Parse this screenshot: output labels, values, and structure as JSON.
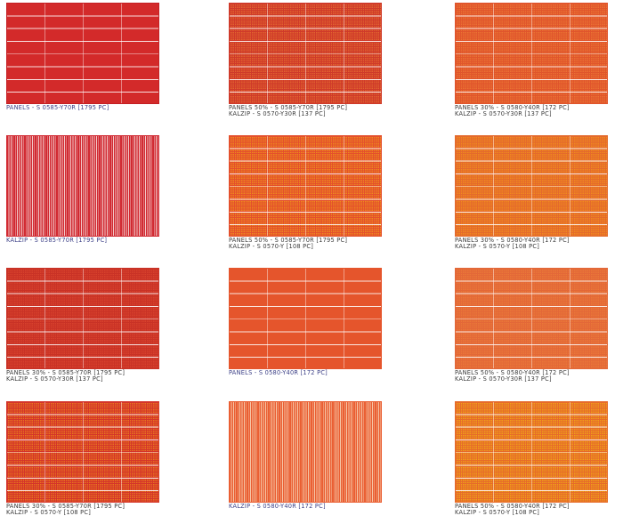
{
  "swatches": [
    {
      "lines": [
        "PANELS - S 0585-Y70R [1795 PC]"
      ],
      "caption_color": "#3b3f86",
      "colors": [
        "#d32a2a",
        "#c41f24"
      ],
      "pattern": "panels"
    },
    {
      "lines": [
        "PANELS 50% - S 0585-Y70R [1795 PC]",
        "KALZIP - S 0570-Y30R [137 PC]"
      ],
      "caption_color": "#3a3a3a",
      "colors": [
        "#e1642e",
        "#cf3a2a"
      ],
      "pattern": "panels-dot"
    },
    {
      "lines": [
        "PANELS 30% - S 0580-Y40R [172 PC]",
        "KALZIP - S 0570-Y30R [137 PC]"
      ],
      "caption_color": "#3a3a3a",
      "colors": [
        "#ea7232",
        "#e0552c"
      ],
      "pattern": "panels-dot"
    },
    {
      "lines": [
        "KALZIP - S 0585-Y70R [1795 PC]"
      ],
      "caption_color": "#3b3f86",
      "colors": [
        "#d12a32",
        "#f2c8c8"
      ],
      "pattern": "vstripes"
    },
    {
      "lines": [
        "PANELS 50% - S 0585-Y70R [1795 PC]",
        "KALZIP - S 0570-Y [108 PC]"
      ],
      "caption_color": "#3a3a3a",
      "colors": [
        "#ee8a1e",
        "#e4502c"
      ],
      "pattern": "panels-dot"
    },
    {
      "lines": [
        "PANELS 30% - S 0580-Y40R [172 PC]",
        "KALZIP - S 0570-Y [108 PC]"
      ],
      "caption_color": "#3a3a3a",
      "colors": [
        "#f08a1e",
        "#e46a2c"
      ],
      "pattern": "panels-dot"
    },
    {
      "lines": [
        "PANELS 30% - S 0585-Y70R [1795 PC]",
        "KALZIP - S 0570-Y30R [137 PC]"
      ],
      "caption_color": "#3a3a3a",
      "colors": [
        "#d8422c",
        "#c93226"
      ],
      "pattern": "panels-dot"
    },
    {
      "lines": [
        "PANELS - S 0580-Y40R [172 PC]"
      ],
      "caption_color": "#3b3f86",
      "colors": [
        "#e5552c",
        "#e5552c"
      ],
      "pattern": "panels"
    },
    {
      "lines": [
        "PANELS 50% - S 0580-Y40R [172 PC]",
        "KALZIP - S 0570-Y30R [137 PC]"
      ],
      "caption_color": "#3a3a3a",
      "colors": [
        "#ea7838",
        "#e36838"
      ],
      "pattern": "panels-dot"
    },
    {
      "lines": [
        "PANELS 30% - S 0585-Y70R [1795 PC]",
        "KALZIP - S 0570-Y [108 PC]"
      ],
      "caption_color": "#3a3a3a",
      "colors": [
        "#e9761e",
        "#d4352a"
      ],
      "pattern": "panels-dot"
    },
    {
      "lines": [
        "KALZIP - S 0580-Y40R [172 PC]"
      ],
      "caption_color": "#3b3f86",
      "colors": [
        "#ea5f33",
        "#f6c7a8"
      ],
      "pattern": "vstripes"
    },
    {
      "lines": [
        "PANELS 50% - S 0580-Y40R [172 PC]",
        "KALZIP - S 0570-Y [108 PC]"
      ],
      "caption_color": "#3a3a3a",
      "colors": [
        "#f0a018",
        "#e66b2a"
      ],
      "pattern": "panels-dot"
    }
  ]
}
